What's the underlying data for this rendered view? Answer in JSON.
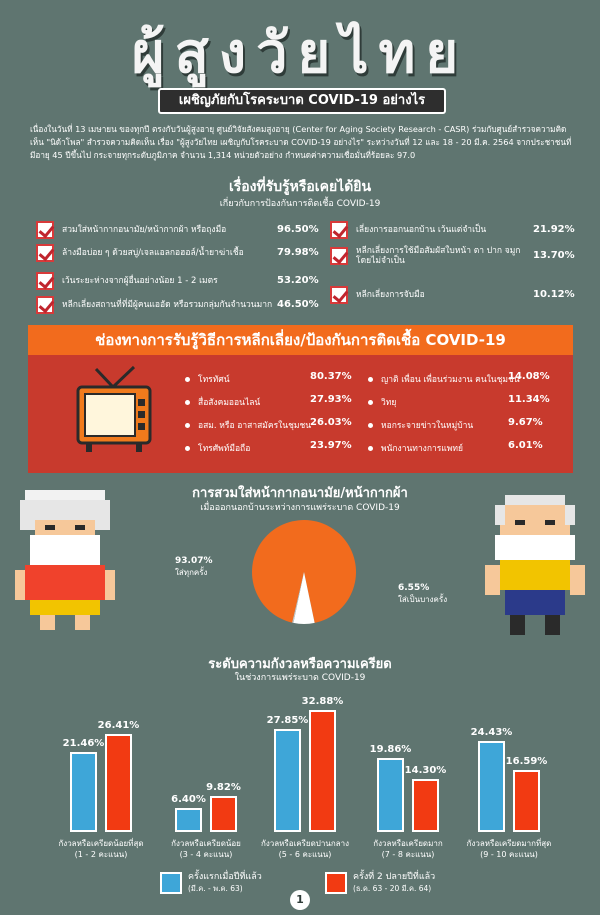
{
  "title": "ผู้สูงวัยไทย",
  "subtitle": "เผชิญภัยกับโรคระบาด COVID-19 อย่างไร",
  "intro": "เนื่องในวันที่ 13 เมษายน ของทุกปี ตรงกับวันผู้สูงอายุ ศูนย์วิจัยสังคมสูงอายุ (Center for Aging Society Research - CASR) ร่วมกับศูนย์สำรวจความคิดเห็น \"นิด้าโพล\" สำรวจความคิดเห็น เรื่อง \"ผู้สูงวัยไทย เผชิญกับโรคระบาด COVID-19 อย่างไร\" ระหว่างวันที่ 12 และ 18 - 20 มี.ค. 2564 จากประชาชนที่มีอายุ 45 ปีขึ้นไป กระจายทุกระดับภูมิภาค จำนวน 1,314 หน่วยตัวอย่าง กำหนดค่าความเชื่อมั่นที่ร้อยละ 97.0",
  "awareness": {
    "title": "เรื่องที่รับรู้หรือเคยได้ยิน",
    "subtitle": "เกี่ยวกับการป้องกันการติดเชื้อ COVID-19",
    "left": [
      {
        "label": "สวมใส่หน้ากากอนามัย/หน้ากากผ้า หรือถุงมือ",
        "value": "96.50%"
      },
      {
        "label": "ล้างมือบ่อย ๆ ด้วยสบู่/เจลแอลกอฮอล์/น้ำยาฆ่าเชื้อ",
        "value": "79.98%"
      },
      {
        "label": "เว้นระยะห่างจากผู้อื่นอย่างน้อย 1 - 2 เมตร",
        "value": "53.20%"
      },
      {
        "label": "หลีกเลี่ยงสถานที่ที่มีผู้คนแออัด หรือรวมกลุ่มกันจำนวนมาก",
        "value": "46.50%"
      }
    ],
    "right": [
      {
        "label": "เลี่ยงการออกนอกบ้าน เว้นแต่จำเป็น",
        "value": "21.92%"
      },
      {
        "label": "หลีกเลี่ยงการใช้มือสัมผัสใบหน้า ตา ปาก จมูก โดยไม่จำเป็น",
        "value": "13.70%"
      },
      {
        "label": "หลีกเลี่ยงการจับมือ",
        "value": "10.12%"
      }
    ]
  },
  "channels": {
    "title": "ช่องทางการรับรู้วิธีการหลีกเลี่ยง/ป้องกันการติดเชื้อ COVID-19",
    "left": [
      {
        "label": "โทรทัศน์",
        "value": "80.37%"
      },
      {
        "label": "สื่อสังคมออนไลน์",
        "value": "27.93%"
      },
      {
        "label": "อสม. หรือ อาสาสมัครในชุมชน",
        "value": "26.03%"
      },
      {
        "label": "โทรศัพท์มือถือ",
        "value": "23.97%"
      }
    ],
    "right": [
      {
        "label": "ญาติ เพื่อน เพื่อนร่วมงาน คนในชุมชน",
        "value": "14.08%"
      },
      {
        "label": "วิทยุ",
        "value": "11.34%"
      },
      {
        "label": "หอกระจายข่าวในหมู่บ้าน",
        "value": "9.67%"
      },
      {
        "label": "พนักงานทางการแพทย์",
        "value": "6.01%"
      }
    ],
    "icon": "tv-icon"
  },
  "mask": {
    "title": "การสวมใส่หน้ากากอนามัย/หน้ากากผ้า",
    "subtitle": "เมื่อออกนอกบ้านระหว่างการแพร่ระบาด COVID-19",
    "always_value": "93.07%",
    "always_label": "ใส่ทุกครั้ง",
    "sometimes_value": "6.55%",
    "sometimes_label": "ใส่เป็นบางครั้ง",
    "pie_values": [
      93.07,
      6.55,
      0.38
    ],
    "colors": {
      "main": "#f26b1d",
      "minor": "#ffffff"
    }
  },
  "stress": {
    "title": "ระดับความกังวลหรือความเครียด",
    "subtitle": "ในช่วงการแพร่ระบาด COVID-19",
    "chart_data": {
      "type": "bar",
      "categories": [
        "กังวลหรือเครียดน้อยที่สุด (1 - 2 คะแนน)",
        "กังวลหรือเครียดน้อย (3 - 4 คะแนน)",
        "กังวลหรือเครียดปานกลาง (5 - 6 คะแนน)",
        "กังวลหรือเครียดมาก (7 - 8 คะแนน)",
        "กังวลหรือเครียดมากที่สุด (9 - 10 คะแนน)"
      ],
      "category_lines": [
        [
          "กังวลหรือเครียดน้อยที่สุด",
          "(1 - 2 คะแนน)"
        ],
        [
          "กังวลหรือเครียดน้อย",
          "(3 - 4 คะแนน)"
        ],
        [
          "กังวลหรือเครียดปานกลาง",
          "(5 - 6 คะแนน)"
        ],
        [
          "กังวลหรือเครียดมาก",
          "(7 - 8 คะแนน)"
        ],
        [
          "กังวลหรือเครียดมากที่สุด",
          "(9 - 10 คะแนน)"
        ]
      ],
      "series": [
        {
          "name": "ครั้งแรกเมื่อปีที่แล้ว",
          "period": "(มี.ค. - พ.ค. 63)",
          "color": "#3ea6d8",
          "values": [
            21.46,
            6.4,
            27.85,
            19.86,
            24.43
          ],
          "labels": [
            "21.46%",
            "6.40%",
            "27.85%",
            "19.86%",
            "24.43%"
          ]
        },
        {
          "name": "ครั้งที่ 2 ปลายปีที่แล้ว",
          "period": "(ธ.ค. 63 - 20 มี.ค. 64)",
          "color": "#f23a12",
          "values": [
            26.41,
            9.82,
            32.88,
            14.3,
            16.59
          ],
          "labels": [
            "26.41%",
            "9.82%",
            "32.88%",
            "14.30%",
            "16.59%"
          ]
        }
      ],
      "ylim": [
        0,
        35
      ],
      "legend": "bottom"
    }
  },
  "page_number": "1"
}
